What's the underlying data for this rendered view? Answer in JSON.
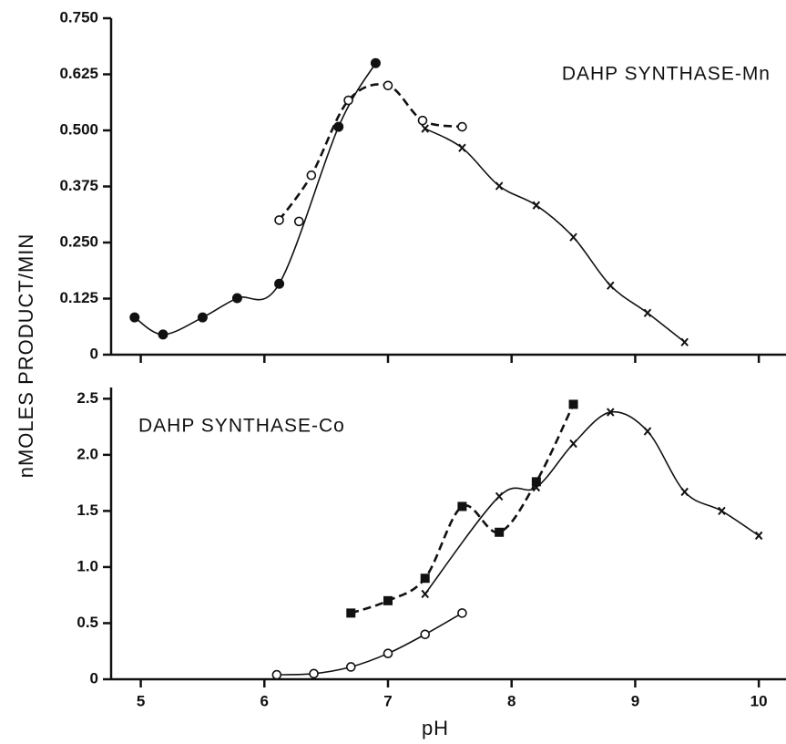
{
  "chart_data": [
    {
      "type": "line",
      "annotation": "DAHP SYNTHASE-Mn",
      "ylabel": "nMOLES  PRODUCT/MIN",
      "xlim": [
        4.76,
        10.22
      ],
      "xticks": [
        5,
        6,
        7,
        8,
        9,
        10
      ],
      "ylim": [
        0,
        0.75
      ],
      "yticks": [
        0,
        0.125,
        {
          "value": 0.25,
          "label": "0.250"
        },
        0.375,
        {
          "value": 0.5,
          "label": "0.500"
        },
        0.625,
        {
          "value": 0.75,
          "label": "0.750"
        }
      ],
      "series": [
        {
          "marker": "filled-circle",
          "line": "solid",
          "color": "#111111",
          "x": [
            4.95,
            5.18,
            5.5,
            5.78,
            6.12,
            6.6,
            6.9
          ],
          "values": [
            0.083,
            0.045,
            0.083,
            0.126,
            0.158,
            0.508,
            0.65
          ]
        },
        {
          "marker": "open-circle",
          "line": "none",
          "color": "#111111",
          "x": [
            6.28
          ],
          "values": [
            0.297
          ]
        },
        {
          "marker": "open-circle",
          "line": "dashed",
          "color": "#111111",
          "x": [
            6.12,
            6.38,
            6.68,
            7.0,
            7.28,
            7.6
          ],
          "values": [
            0.3,
            0.4,
            0.567,
            0.6,
            0.522,
            0.508
          ]
        },
        {
          "marker": "cross",
          "line": "solid",
          "color": "#111111",
          "x": [
            7.3,
            7.6,
            7.9,
            8.2,
            8.5,
            8.8,
            9.1,
            9.4
          ],
          "values": [
            0.504,
            0.461,
            0.376,
            0.333,
            0.262,
            0.154,
            0.093,
            0.028
          ]
        }
      ]
    },
    {
      "type": "line",
      "annotation": "DAHP SYNTHASE-Co",
      "xlabel": "pH",
      "xlim": [
        4.76,
        10.22
      ],
      "xticks": [
        5,
        6,
        7,
        8,
        9,
        10
      ],
      "ylim": [
        0,
        2.6
      ],
      "yticks": [
        0,
        0.5,
        {
          "value": 1,
          "label": "1.0"
        },
        1.5,
        {
          "value": 2,
          "label": "2.0"
        },
        2.5
      ],
      "series": [
        {
          "marker": "square",
          "line": "dashed",
          "color": "#111111",
          "x": [
            6.7,
            7.0,
            7.3,
            7.6,
            7.9,
            8.2,
            8.5
          ],
          "values": [
            0.59,
            0.7,
            0.9,
            1.54,
            1.31,
            1.76,
            2.45
          ]
        },
        {
          "marker": "cross",
          "line": "solid",
          "color": "#111111",
          "x": [
            7.3,
            7.9,
            8.2,
            8.5,
            8.8,
            9.1,
            9.4,
            9.7,
            10.0
          ],
          "values": [
            0.76,
            1.63,
            1.71,
            2.1,
            2.38,
            2.21,
            1.67,
            1.5,
            1.28
          ]
        },
        {
          "marker": "open-circle",
          "line": "solid",
          "color": "#111111",
          "x": [
            6.1,
            6.4,
            6.7,
            7.0,
            7.3,
            7.6
          ],
          "values": [
            0.04,
            0.05,
            0.11,
            0.23,
            0.4,
            0.59
          ]
        }
      ]
    }
  ]
}
